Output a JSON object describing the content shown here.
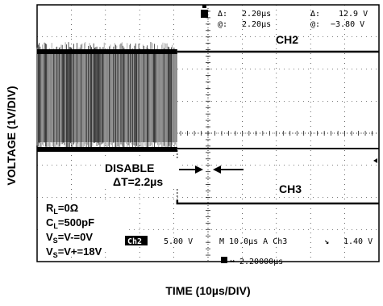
{
  "chart_data": {
    "type": "line",
    "xlabel": "TIME (10µs/DIV)",
    "ylabel": "VOLTAGE (1V/DIV)",
    "grid": true,
    "readout": {
      "delta_t_label": "Δ:",
      "delta_t_value": "2.20µs",
      "at_t_label": "@:",
      "at_t_value": "2.20µs",
      "delta_v_label": "Δ:",
      "delta_v_value": "12.9 V",
      "at_v_label": "@:",
      "at_v_value": "−3.80 V"
    },
    "channels": [
      {
        "name": "CH2",
        "description_points_x_div": [
          0,
          4.1,
          4.1,
          10
        ],
        "state": [
          "oscillating",
          "oscillating",
          "stopped",
          "stopped"
        ]
      },
      {
        "name": "CH3",
        "levels_div": [
          {
            "x": 0,
            "y": 0
          },
          {
            "x": 4.1,
            "y": 0
          },
          {
            "x": 4.1,
            "y": -1
          },
          {
            "x": 10,
            "y": -1
          }
        ]
      }
    ],
    "annotations": {
      "disable_label": "DISABLE",
      "delta_t_annotation": "ΔT=2.2µs",
      "params": [
        {
          "main": "R",
          "sub": "L",
          "rest": "=0Ω"
        },
        {
          "main": "C",
          "sub": "L",
          "rest": "=500pF"
        },
        {
          "main": "V",
          "sub": "S",
          "rest": "=V-=0V"
        },
        {
          "main": "V",
          "sub": "S",
          "rest": "=V+=18V"
        }
      ]
    },
    "scope_status": {
      "ch_badge": "Ch2",
      "ch_scale": "5.00 V",
      "timebase": "M 10.0µs  A  Ch3",
      "trigger_slope": "↘",
      "trigger_level": "1.40 V",
      "trigger_pos": "2.20000µs"
    }
  }
}
